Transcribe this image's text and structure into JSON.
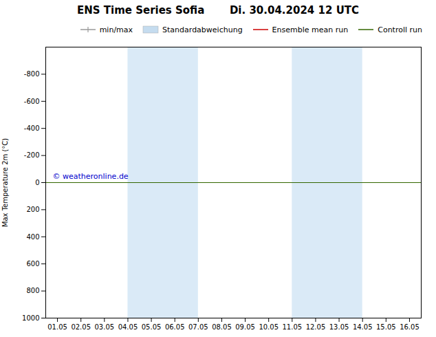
{
  "chart_data": {
    "type": "line",
    "title": "ENS Time Series Sofia       Di. 30.04.2024 12 UTC",
    "ylabel": "Max Temperature 2m (°C)",
    "x": [
      "01.05",
      "02.05",
      "03.05",
      "04.05",
      "05.05",
      "06.05",
      "07.05",
      "08.05",
      "09.05",
      "10.05",
      "11.05",
      "12.05",
      "13.05",
      "14.05",
      "15.05",
      "16.05"
    ],
    "ylim": [
      1000,
      -1000
    ],
    "yticks": [
      -800,
      -600,
      -400,
      -200,
      0,
      200,
      400,
      600,
      800,
      1000
    ],
    "grid": false,
    "legend": "upper right",
    "series": [
      {
        "name": "min/max",
        "type": "line",
        "marker": "vline",
        "color": "#999999",
        "values": [
          null,
          null,
          null,
          null,
          null,
          null,
          null,
          null,
          null,
          null,
          null,
          null,
          null,
          null,
          null,
          null
        ]
      },
      {
        "name": "Standardabweichung",
        "type": "area",
        "color": "#c5dcef",
        "values": [
          null,
          null,
          null,
          null,
          null,
          null,
          null,
          null,
          null,
          null,
          null,
          null,
          null,
          null,
          null,
          null
        ]
      },
      {
        "name": "Ensemble mean run",
        "type": "line",
        "color": "#cc0000",
        "values": [
          null,
          null,
          null,
          null,
          null,
          null,
          null,
          null,
          null,
          null,
          null,
          null,
          null,
          null,
          null,
          null
        ]
      },
      {
        "name": "Controll run",
        "type": "line",
        "color": "#336600",
        "values": [
          null,
          null,
          null,
          null,
          null,
          null,
          null,
          null,
          null,
          null,
          null,
          null,
          null,
          null,
          null,
          null
        ]
      }
    ],
    "shaded_regions": [
      {
        "from": "04.05",
        "to": "07.05",
        "color": "#daeaf7"
      },
      {
        "from": "11.05",
        "to": "14.05",
        "color": "#daeaf7"
      }
    ],
    "hline": {
      "y": 0,
      "color": "#336600"
    },
    "annotations": [
      {
        "text": "© weatheronline.de",
        "color": "#0000cc"
      }
    ]
  }
}
